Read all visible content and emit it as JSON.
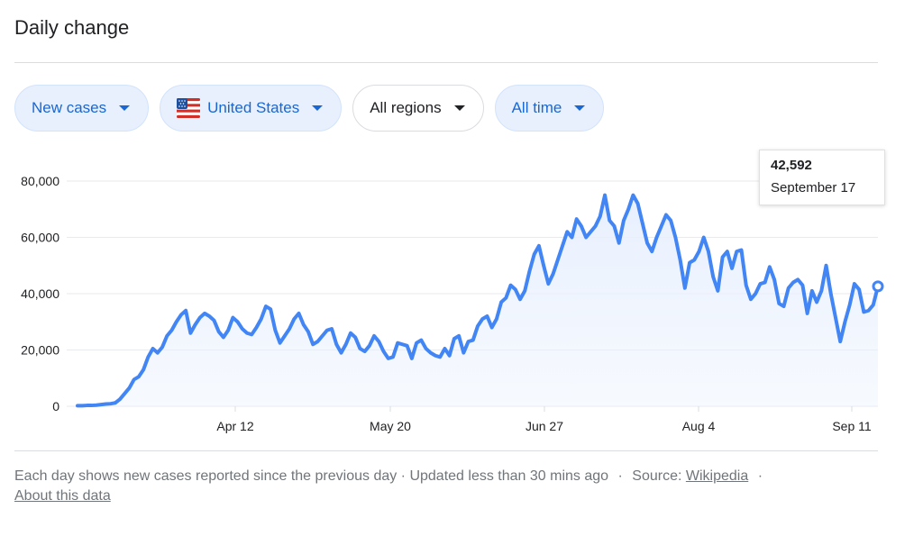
{
  "header": {
    "title": "Daily change"
  },
  "filters": {
    "metric": "New cases",
    "location": "United States",
    "region": "All regions",
    "range": "All time"
  },
  "colors": {
    "line": "#4285f4",
    "area": "#e8f0fe",
    "chip_bg": "#e8f0fe",
    "chip_text": "#1967d2",
    "grid": "#e8eaed"
  },
  "tooltip": {
    "value": "42,592",
    "date": "September 17"
  },
  "footer": {
    "description": "Each day shows new cases reported since the previous day · Updated less than 30 mins ago",
    "source_label": "Source:",
    "source_link": "Wikipedia",
    "about_link": "About this data"
  },
  "chart_data": {
    "type": "area",
    "title": "",
    "xlabel": "",
    "ylabel": "",
    "x_ticks": [
      "Apr 12",
      "May 20",
      "Jun 27",
      "Aug 4",
      "Sep 11"
    ],
    "y_ticks": [
      "0",
      "20,000",
      "40,000",
      "60,000",
      "80,000"
    ],
    "ylim": [
      0,
      80000
    ],
    "grid": true,
    "series": [
      {
        "values": [
          200,
          200,
          300,
          300,
          400,
          600,
          800,
          900,
          1200,
          2500,
          4500,
          6500,
          9500,
          10500,
          13000,
          17500,
          20500,
          19000,
          21000,
          25000,
          27000,
          30000,
          32500,
          34000,
          26000,
          29000,
          31500,
          33000,
          32000,
          30500,
          26500,
          24500,
          27000,
          31500,
          30000,
          27500,
          26000,
          25500,
          28000,
          31000,
          35500,
          34500,
          27000,
          22500,
          25000,
          27500,
          31000,
          33000,
          29000,
          26500,
          22000,
          23000,
          25000,
          27000,
          27500,
          22000,
          19000,
          22000,
          26000,
          24500,
          20500,
          19500,
          21500,
          25000,
          23000,
          19500,
          17000,
          17500,
          22500,
          22000,
          21500,
          17000,
          22500,
          23500,
          20500,
          19000,
          18000,
          17500,
          20500,
          18000,
          24000,
          25000,
          19000,
          23000,
          23500,
          28500,
          31000,
          32000,
          28000,
          31000,
          37000,
          38500,
          43000,
          41500,
          38000,
          41000,
          48000,
          54000,
          57000,
          50000,
          43500,
          47000,
          52000,
          57000,
          62000,
          60000,
          66500,
          64000,
          60000,
          62000,
          64000,
          67500,
          75000,
          66000,
          64000,
          58000,
          66000,
          70000,
          75000,
          72000,
          65000,
          58000,
          55000,
          60000,
          64000,
          68000,
          66000,
          60000,
          52000,
          42000,
          51000,
          52000,
          55000,
          60000,
          55000,
          46000,
          41000,
          53000,
          55000,
          49000,
          55000,
          55500,
          43000,
          38000,
          40000,
          43500,
          44000,
          49500,
          45000,
          36500,
          35500,
          42000,
          44000,
          45000,
          43000,
          33000,
          41000,
          37000,
          41000,
          50000,
          40000,
          31500,
          23000,
          30000,
          36000,
          43500,
          41500,
          33500,
          34000,
          36000,
          42592
        ]
      }
    ]
  }
}
